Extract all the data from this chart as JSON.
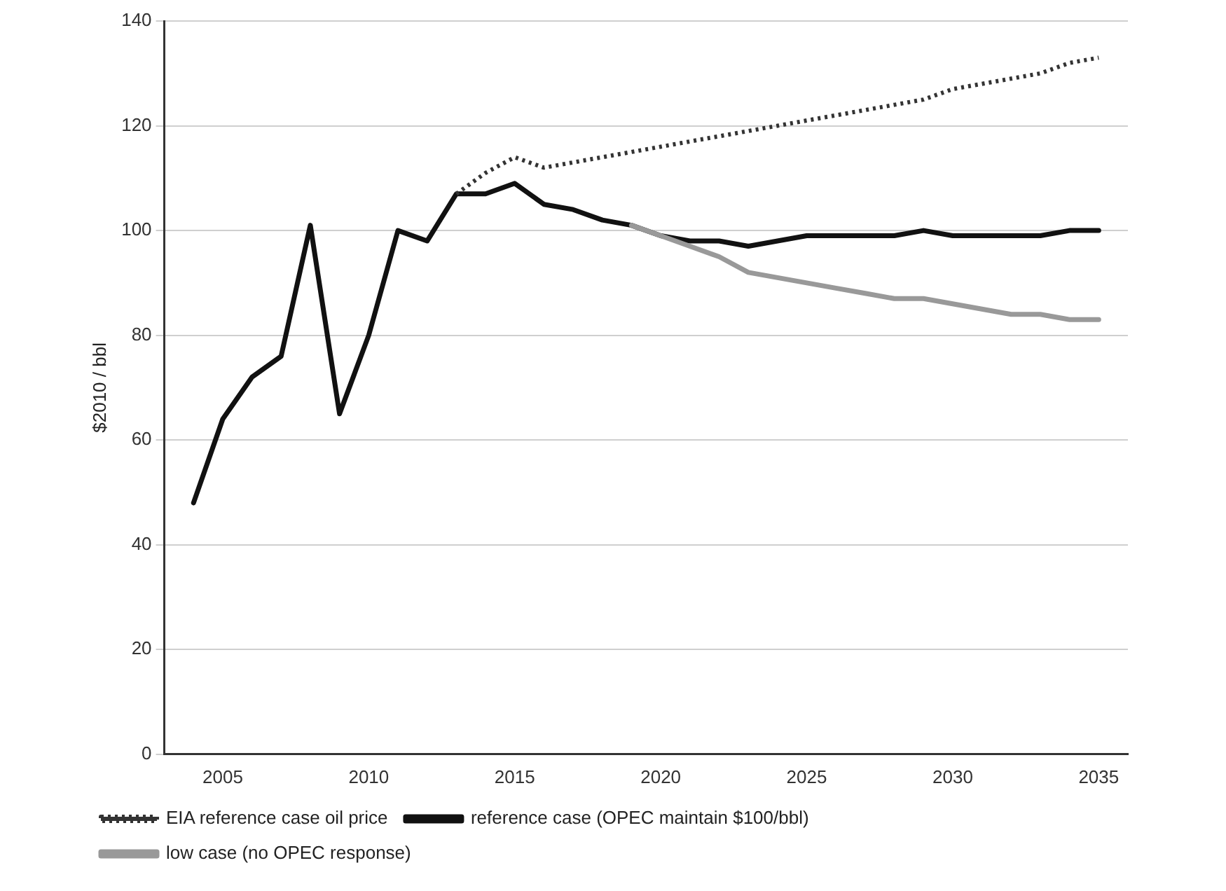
{
  "chart_data": {
    "type": "line",
    "ylabel": "$2010 / bbl",
    "x": [
      2004,
      2005,
      2006,
      2007,
      2008,
      2009,
      2010,
      2011,
      2012,
      2013,
      2014,
      2015,
      2016,
      2017,
      2018,
      2019,
      2020,
      2021,
      2022,
      2023,
      2024,
      2025,
      2026,
      2027,
      2028,
      2029,
      2030,
      2031,
      2032,
      2033,
      2034,
      2035
    ],
    "series": [
      {
        "name": "EIA reference case oil price",
        "color": "#333333",
        "line_style": "dotted",
        "values": [
          null,
          null,
          null,
          null,
          null,
          null,
          null,
          null,
          null,
          107,
          111,
          114,
          112,
          113,
          114,
          115,
          116,
          117,
          118,
          119,
          120,
          121,
          122,
          123,
          124,
          125,
          127,
          128,
          129,
          130,
          132,
          133
        ]
      },
      {
        "name": "low case (no OPEC response)",
        "color": "#999999",
        "line_style": "solid",
        "values": [
          null,
          null,
          null,
          null,
          null,
          null,
          null,
          null,
          null,
          null,
          null,
          null,
          null,
          null,
          null,
          101,
          99,
          97,
          95,
          92,
          91,
          90,
          89,
          88,
          87,
          87,
          86,
          85,
          84,
          84,
          83,
          83
        ]
      },
      {
        "name": "reference case (OPEC maintain $100/bbl)",
        "color": "#111111",
        "line_style": "solid",
        "values": [
          48,
          64,
          72,
          76,
          101,
          65,
          80,
          100,
          98,
          107,
          107,
          109,
          105,
          104,
          102,
          101,
          99,
          98,
          98,
          97,
          98,
          99,
          99,
          99,
          99,
          100,
          99,
          99,
          99,
          99,
          100,
          100
        ]
      }
    ],
    "xlim": [
      2003,
      2036
    ],
    "xticks": [
      2005,
      2010,
      2015,
      2020,
      2025,
      2030,
      2035
    ],
    "ylim": [
      0,
      140
    ],
    "yticks": [
      0,
      20,
      40,
      60,
      80,
      100,
      120,
      140
    ],
    "grid": "y",
    "legend": "bottom",
    "marker": "none"
  }
}
